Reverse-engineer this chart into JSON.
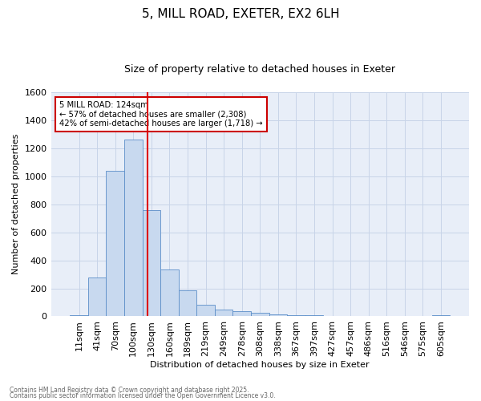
{
  "title1": "5, MILL ROAD, EXETER, EX2 6LH",
  "title2": "Size of property relative to detached houses in Exeter",
  "xlabel": "Distribution of detached houses by size in Exeter",
  "ylabel": "Number of detached properties",
  "categories": [
    "11sqm",
    "41sqm",
    "70sqm",
    "100sqm",
    "130sqm",
    "160sqm",
    "189sqm",
    "219sqm",
    "249sqm",
    "278sqm",
    "308sqm",
    "338sqm",
    "367sqm",
    "397sqm",
    "427sqm",
    "457sqm",
    "486sqm",
    "516sqm",
    "546sqm",
    "575sqm",
    "605sqm"
  ],
  "values": [
    10,
    280,
    1040,
    1260,
    760,
    335,
    185,
    85,
    50,
    35,
    25,
    15,
    10,
    8,
    2,
    3,
    2,
    2,
    2,
    2,
    10
  ],
  "bar_color": "#c8d9ef",
  "bar_edge_color": "#5b8dc8",
  "grid_color": "#c8d4e8",
  "background_color": "#ffffff",
  "axes_background": "#e8eef8",
  "annotation_text_line1": "5 MILL ROAD: 124sqm",
  "annotation_text_line2": "← 57% of detached houses are smaller (2,308)",
  "annotation_text_line3": "42% of semi-detached houses are larger (1,718) →",
  "red_line_color": "#dd0000",
  "annotation_box_edge": "#cc0000",
  "footer1": "Contains HM Land Registry data © Crown copyright and database right 2025.",
  "footer2": "Contains public sector information licensed under the Open Government Licence v3.0.",
  "ylim": [
    0,
    1600
  ],
  "yticks": [
    0,
    200,
    400,
    600,
    800,
    1000,
    1200,
    1400,
    1600
  ],
  "title1_fontsize": 11,
  "title2_fontsize": 9,
  "tick_fontsize": 8,
  "ylabel_fontsize": 8,
  "xlabel_fontsize": 8
}
